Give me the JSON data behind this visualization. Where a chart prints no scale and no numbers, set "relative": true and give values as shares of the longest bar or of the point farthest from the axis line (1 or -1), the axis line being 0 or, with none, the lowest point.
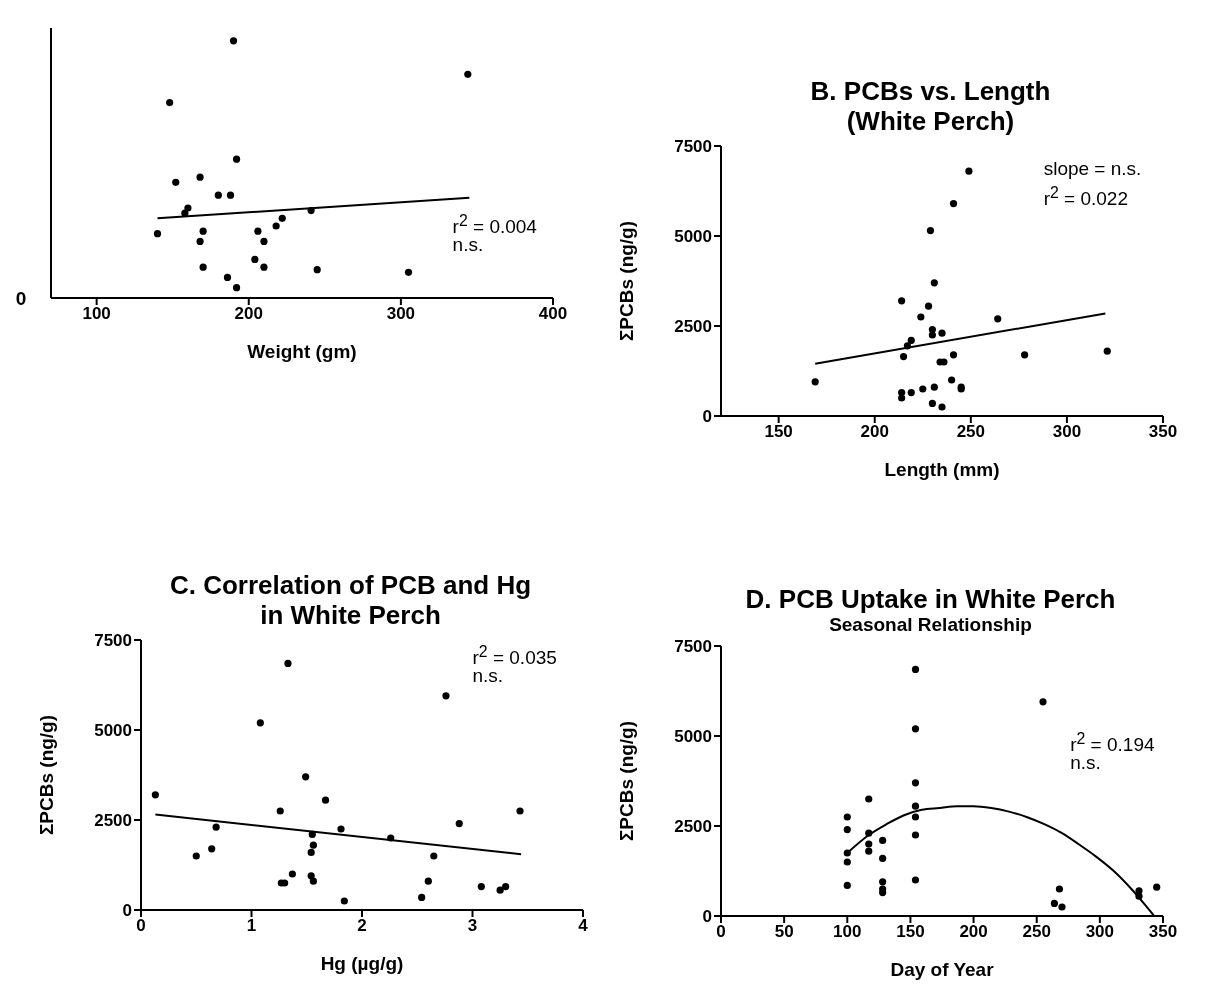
{
  "chart_data": [
    {
      "type": "scatter",
      "relative": true,
      "xlabel": "Weight (gm)",
      "xlim": [
        70,
        400
      ],
      "xticks": [
        100,
        200,
        300,
        400
      ],
      "annotations": [
        "r$^{2}$ = 0.004",
        "n.s.",
        "0"
      ],
      "series": [
        {
          "type": "scatter",
          "marker": "circle",
          "color": "#000000",
          "x": [
            190,
            344,
            148,
            192,
            168,
            152,
            180,
            188,
            160,
            158,
            241,
            222,
            218,
            140,
            170,
            168,
            206,
            210,
            204,
            170,
            210,
            245,
            305,
            186,
            192
          ],
          "values": [
            1,
            0.87,
            0.76,
            0.54,
            0.47,
            0.45,
            0.4,
            0.4,
            0.35,
            0.33,
            0.34,
            0.31,
            0.28,
            0.25,
            0.26,
            0.22,
            0.26,
            0.22,
            0.15,
            0.12,
            0.12,
            0.11,
            0.1,
            0.08,
            0.04
          ]
        },
        {
          "type": "line",
          "color": "#000000",
          "x": [
            140,
            345
          ],
          "values": [
            0.31,
            0.39
          ]
        }
      ]
    },
    {
      "type": "scatter",
      "title": "B.  PCBs vs. Length\n(White Perch)",
      "xlabel": "Length (mm)",
      "ylabel": "ΣPCBs (ng/g)",
      "xlim": [
        120,
        350
      ],
      "xticks": [
        150,
        200,
        250,
        300,
        350
      ],
      "ylim": [
        0,
        7500
      ],
      "yticks": [
        0,
        2500,
        5000,
        7500
      ],
      "annotations": [
        "slope = n.s.",
        "r$^{2}$ = 0.022"
      ],
      "series": [
        {
          "type": "scatter",
          "marker": "circle",
          "color": "#000000",
          "x": [
            169,
            214,
            228,
            224,
            231,
            229,
            241,
            249,
            230,
            230,
            235,
            219,
            217,
            215,
            241,
            234,
            236,
            264,
            278,
            321,
            240,
            245,
            245,
            231,
            225,
            219,
            214,
            214,
            230,
            235
          ],
          "values": [
            950,
            3200,
            3050,
            2750,
            3700,
            5150,
            5900,
            6800,
            2400,
            2250,
            2300,
            2100,
            1950,
            1650,
            1700,
            1500,
            1500,
            2700,
            1700,
            1800,
            1000,
            800,
            750,
            800,
            750,
            650,
            650,
            500,
            350,
            250
          ]
        },
        {
          "type": "line",
          "color": "#000000",
          "x": [
            169,
            320
          ],
          "values": [
            1450,
            2850
          ]
        }
      ]
    },
    {
      "type": "scatter",
      "title": "C.  Correlation of PCB and Hg\nin White Perch",
      "xlabel": "Hg (µg/g)",
      "ylabel": "ΣPCBs (ng/g)",
      "xlim": [
        0,
        4
      ],
      "xticks": [
        0,
        1,
        2,
        3,
        4
      ],
      "ylim": [
        0,
        7500
      ],
      "yticks": [
        0,
        2500,
        5000,
        7500
      ],
      "annotations": [
        "r$^{2}$ = 0.035",
        "n.s."
      ],
      "series": [
        {
          "type": "scatter",
          "marker": "circle",
          "color": "#000000",
          "x": [
            0.13,
            0.5,
            0.64,
            0.68,
            1.08,
            1.26,
            1.27,
            1.3,
            1.33,
            1.37,
            1.49,
            1.54,
            1.54,
            1.55,
            1.56,
            1.56,
            1.67,
            1.81,
            1.84,
            2.26,
            2.54,
            2.6,
            2.65,
            2.76,
            2.88,
            3.08,
            3.25,
            3.3,
            3.43
          ],
          "values": [
            3200,
            1500,
            1700,
            2300,
            5200,
            2750,
            750,
            750,
            6850,
            1000,
            3700,
            950,
            1600,
            2100,
            1800,
            800,
            3050,
            2250,
            250,
            2000,
            350,
            800,
            1500,
            5950,
            2400,
            650,
            550,
            650,
            2750
          ]
        },
        {
          "type": "line",
          "color": "#000000",
          "x": [
            0.13,
            3.44
          ],
          "values": [
            2650,
            1550
          ]
        }
      ]
    },
    {
      "type": "scatter",
      "title": "D. PCB Uptake in White Perch",
      "subtitle": "Seasonal Relationship",
      "xlabel": "Day of Year",
      "ylabel": "ΣPCBs (ng/g)",
      "xlim": [
        0,
        350
      ],
      "xticks": [
        0,
        50,
        100,
        150,
        200,
        250,
        300,
        350
      ],
      "ylim": [
        0,
        7500
      ],
      "yticks": [
        0,
        2500,
        5000,
        7500
      ],
      "annotations": [
        "r$^{2}$ = 0.194",
        "n.s."
      ],
      "series": [
        {
          "type": "scatter",
          "marker": "circle",
          "color": "#000000",
          "x": [
            100,
            100,
            100,
            100,
            100,
            117,
            117,
            117,
            117,
            128,
            128,
            128,
            128,
            128,
            154,
            154,
            154,
            154,
            154,
            154,
            154,
            255,
            264,
            268,
            270,
            331,
            331,
            345
          ],
          "values": [
            2750,
            2400,
            1750,
            1500,
            850,
            3250,
            2300,
            2000,
            1800,
            2100,
            1600,
            950,
            750,
            650,
            6850,
            5200,
            3700,
            3050,
            2750,
            2250,
            1000,
            5950,
            350,
            750,
            250,
            700,
            550,
            800
          ]
        },
        {
          "type": "line",
          "color": "#000000",
          "x": [
            100,
            117,
            131,
            145,
            159,
            173,
            187,
            200,
            214,
            228,
            242,
            256,
            270,
            283,
            297,
            311,
            325,
            336,
            343
          ],
          "values": [
            1750,
            2250,
            2550,
            2800,
            2950,
            3000,
            3050,
            3050,
            3000,
            2900,
            2750,
            2550,
            2300,
            2000,
            1650,
            1250,
            750,
            300,
            0
          ]
        }
      ]
    }
  ]
}
